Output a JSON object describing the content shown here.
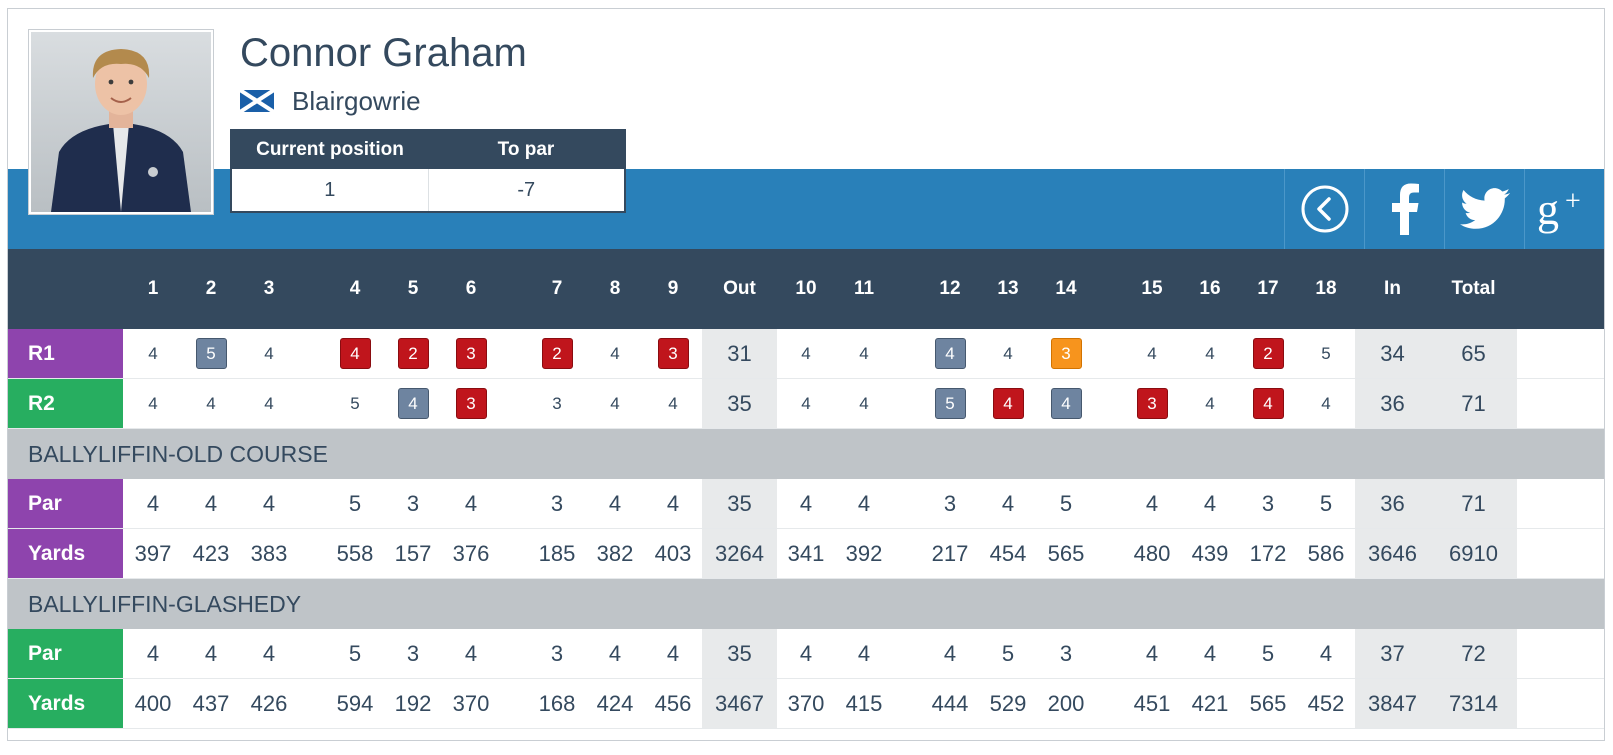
{
  "player": {
    "name": "Connor Graham",
    "club": "Blairgowrie",
    "flag_icon": "scotland-flag-icon"
  },
  "position_table": {
    "headers": [
      "Current position",
      "To par"
    ],
    "values": [
      "1",
      "-7"
    ]
  },
  "actions": [
    {
      "icon": "back-circle-icon"
    },
    {
      "icon": "facebook-icon"
    },
    {
      "icon": "twitter-icon"
    },
    {
      "icon": "google-plus-icon"
    }
  ],
  "colors": {
    "navy": "#34495e",
    "blue_band": "#2980b9",
    "purple": "#8e44ad",
    "green": "#27ae60",
    "score_red": "#c0151c",
    "score_grey": "#6e84a0",
    "score_orange": "#f7941d"
  },
  "headers": [
    "",
    "1",
    "2",
    "3",
    "4",
    "5",
    "6",
    "7",
    "8",
    "9",
    "Out",
    "10",
    "11",
    "12",
    "13",
    "14",
    "15",
    "16",
    "17",
    "18",
    "In",
    "Total"
  ],
  "rounds": [
    {
      "label": "R1",
      "color": "purple",
      "cells": [
        {
          "v": "4"
        },
        {
          "v": "5",
          "s": "grey"
        },
        {
          "v": "4"
        },
        {
          "v": "4",
          "s": "red"
        },
        {
          "v": "2",
          "s": "red"
        },
        {
          "v": "3",
          "s": "red"
        },
        {
          "v": "2",
          "s": "red"
        },
        {
          "v": "4"
        },
        {
          "v": "3",
          "s": "red"
        },
        {
          "v": "31"
        },
        {
          "v": "4"
        },
        {
          "v": "4"
        },
        {
          "v": "4",
          "s": "grey"
        },
        {
          "v": "4"
        },
        {
          "v": "3",
          "s": "orange"
        },
        {
          "v": "4"
        },
        {
          "v": "4"
        },
        {
          "v": "2",
          "s": "red"
        },
        {
          "v": "5"
        },
        {
          "v": "34"
        },
        {
          "v": "65"
        }
      ]
    },
    {
      "label": "R2",
      "color": "green",
      "cells": [
        {
          "v": "4"
        },
        {
          "v": "4"
        },
        {
          "v": "4"
        },
        {
          "v": "5"
        },
        {
          "v": "4",
          "s": "grey"
        },
        {
          "v": "3",
          "s": "red"
        },
        {
          "v": "3"
        },
        {
          "v": "4"
        },
        {
          "v": "4"
        },
        {
          "v": "35"
        },
        {
          "v": "4"
        },
        {
          "v": "4"
        },
        {
          "v": "5",
          "s": "grey"
        },
        {
          "v": "4",
          "s": "red"
        },
        {
          "v": "4",
          "s": "grey"
        },
        {
          "v": "3",
          "s": "red"
        },
        {
          "v": "4"
        },
        {
          "v": "4",
          "s": "red"
        },
        {
          "v": "4"
        },
        {
          "v": "36"
        },
        {
          "v": "71"
        }
      ]
    }
  ],
  "courses": [
    {
      "name": "BALLYLIFFIN-OLD COURSE",
      "color": "purple",
      "rows": [
        {
          "label": "Par",
          "values": [
            "4",
            "4",
            "4",
            "5",
            "3",
            "4",
            "3",
            "4",
            "4",
            "35",
            "4",
            "4",
            "3",
            "4",
            "5",
            "4",
            "4",
            "3",
            "5",
            "36",
            "71"
          ]
        },
        {
          "label": "Yards",
          "values": [
            "397",
            "423",
            "383",
            "558",
            "157",
            "376",
            "185",
            "382",
            "403",
            "3264",
            "341",
            "392",
            "217",
            "454",
            "565",
            "480",
            "439",
            "172",
            "586",
            "3646",
            "6910"
          ]
        }
      ]
    },
    {
      "name": "BALLYLIFFIN-GLASHEDY",
      "color": "green",
      "rows": [
        {
          "label": "Par",
          "values": [
            "4",
            "4",
            "4",
            "5",
            "3",
            "4",
            "3",
            "4",
            "4",
            "35",
            "4",
            "4",
            "4",
            "5",
            "3",
            "4",
            "4",
            "5",
            "4",
            "37",
            "72"
          ]
        },
        {
          "label": "Yards",
          "values": [
            "400",
            "437",
            "426",
            "594",
            "192",
            "370",
            "168",
            "424",
            "456",
            "3467",
            "370",
            "415",
            "444",
            "529",
            "200",
            "451",
            "421",
            "565",
            "452",
            "3847",
            "7314"
          ]
        }
      ]
    }
  ]
}
